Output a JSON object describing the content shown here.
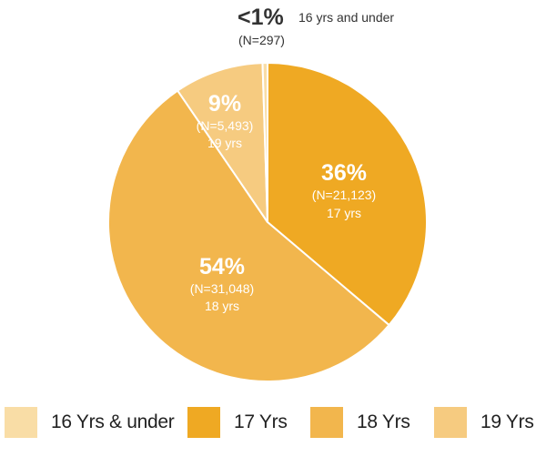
{
  "chart_data": {
    "type": "pie",
    "title": "",
    "colors": {
      "16 Yrs & under": "#F9DDA6",
      "17 Yrs": "#EFA923",
      "18 Yrs": "#F2B64D",
      "19 Yrs": "#F6CB80"
    },
    "slices": [
      {
        "name": "17 Yrs",
        "percent": 36,
        "n": 21123,
        "pct_label": "36%",
        "n_label": "(N=21,123)",
        "age_label": "17 yrs"
      },
      {
        "name": "18 Yrs",
        "percent": 54,
        "n": 31048,
        "pct_label": "54%",
        "n_label": "(N=31,048)",
        "age_label": "18 yrs"
      },
      {
        "name": "19 Yrs",
        "percent": 9,
        "n": 5493,
        "pct_label": "9%",
        "n_label": "(N=5,493)",
        "age_label": "19 yrs"
      },
      {
        "name": "16 Yrs & under",
        "percent": 0.5,
        "n": 297,
        "pct_label": "<1%",
        "n_label": "(N=297)",
        "age_label": "16 yrs and under"
      }
    ],
    "legend": {
      "position": "bottom",
      "items": [
        "16 Yrs & under",
        "17 Yrs",
        "18 Yrs",
        "19 Yrs"
      ]
    }
  }
}
